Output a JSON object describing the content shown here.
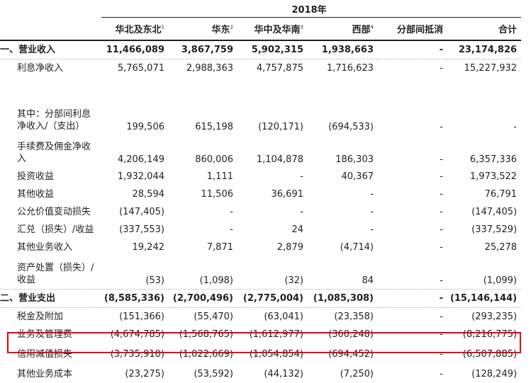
{
  "year_header": "2018年",
  "columns": [
    "华北及东北",
    "华东",
    "华中及华南",
    "西部",
    "分部间抵消",
    "合计"
  ],
  "column_notes": [
    "1",
    "2",
    "3",
    "4",
    "",
    ""
  ],
  "rows": [
    {
      "label": "一、营业收入",
      "values": [
        "11,466,089",
        "3,867,759",
        "5,902,315",
        "1,938,663",
        "-",
        "23,174,826"
      ]
    },
    {
      "label": "利息净收入",
      "values": [
        "5,765,071",
        "2,988,363",
        "4,757,875",
        "1,716,623",
        "-",
        "15,227,932"
      ]
    },
    {
      "label": "其中：分部间利息净收入/（支出）",
      "values": [
        "199,506",
        "615,198",
        "(120,171)",
        "(694,533)",
        "-",
        "-"
      ]
    },
    {
      "label": "手续费及佣金净收入",
      "values": [
        "4,206,149",
        "860,006",
        "1,104,878",
        "186,303",
        "-",
        "6,357,336"
      ]
    },
    {
      "label": "投资收益",
      "values": [
        "1,932,044",
        "1,111",
        "-",
        "40,367",
        "-",
        "1,973,522"
      ]
    },
    {
      "label": "其他收益",
      "values": [
        "28,594",
        "11,506",
        "36,691",
        "-",
        "-",
        "76,791"
      ]
    },
    {
      "label": "公允价值变动损失",
      "values": [
        "(147,405)",
        "-",
        "-",
        "-",
        "-",
        "(147,405)"
      ]
    },
    {
      "label": "汇兑（损失）/收益",
      "values": [
        "(337,553)",
        "-",
        "24",
        "-",
        "-",
        "(337,529)"
      ]
    },
    {
      "label": "其他业务收入",
      "values": [
        "19,242",
        "7,871",
        "2,879",
        "(4,714)",
        "-",
        "25,278"
      ]
    },
    {
      "label": "资产处置（损失）/收益",
      "values": [
        "(53)",
        "(1,098)",
        "(32)",
        "84",
        "-",
        "(1,099)"
      ]
    },
    {
      "label": "二、营业支出",
      "values": [
        "(8,585,336)",
        "(2,700,496)",
        "(2,775,004)",
        "(1,085,308)",
        "-",
        "(15,146,144)"
      ]
    },
    {
      "label": "税金及附加",
      "values": [
        "(151,366)",
        "(55,470)",
        "(63,041)",
        "(23,358)",
        "-",
        "(293,235)"
      ]
    },
    {
      "label": "业务及管理费",
      "values": [
        "(4,674,785)",
        "(1,568,765)",
        "(1,612,977)",
        "(360,248)",
        "-",
        "(8,216,775)"
      ]
    },
    {
      "label": "信用减值损失",
      "values": [
        "(3,735,910)",
        "(1,022,669)",
        "(1,054,854)",
        "(694,452)",
        "-",
        "(6,507,885)"
      ]
    },
    {
      "label": "其他业务成本",
      "values": [
        "(23,275)",
        "(53,592)",
        "(44,132)",
        "(7,250)",
        "-",
        "(128,249)"
      ]
    }
  ]
}
